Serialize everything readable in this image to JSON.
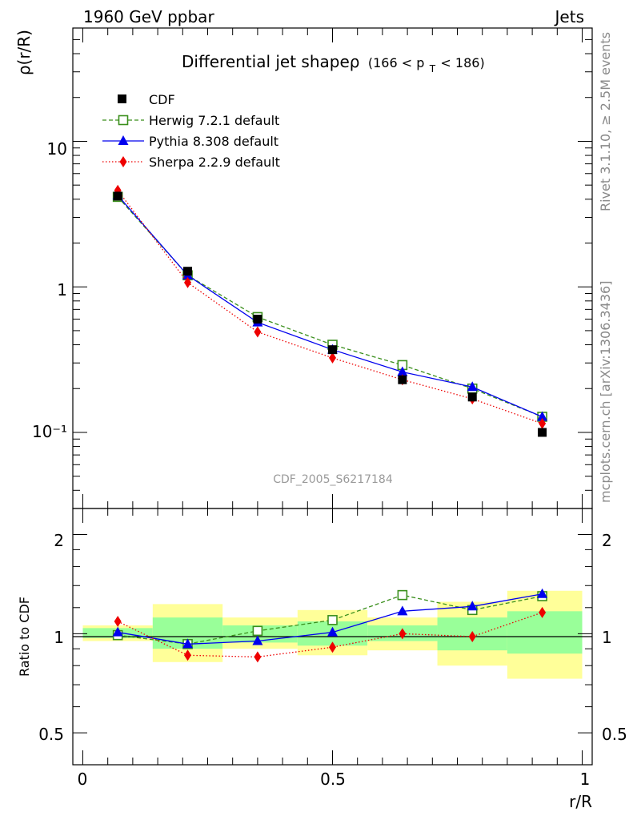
{
  "header": {
    "left": "1960 GeV ppbar",
    "right": "Jets"
  },
  "side_text": {
    "rivet": "Rivet 3.1.10, ≥ 2.5M events",
    "mcplots": "mcplots.cern.ch [arXiv:1306.3436]"
  },
  "watermark": "CDF_2005_S6217184",
  "colors": {
    "cdf": "#000000",
    "herwig": "#3a8f1c",
    "pythia": "#0000ee",
    "sherpa": "#ee0000",
    "band_outer": "#ffff99",
    "band_inner": "#99ff99"
  },
  "chart_data": [
    {
      "type": "line",
      "title_main": "Differential jet shapeρ",
      "title_range_prefix": "(166 < p",
      "title_range_sub": "T",
      "title_range_suffix": " < 186)",
      "ylabel": "ρ(r/R)",
      "yscale": "log",
      "ylim": [
        0.03,
        60
      ],
      "xlim": [
        -0.02,
        1.02
      ],
      "y_tick_labels": [
        "10⁻¹",
        "1",
        "10"
      ],
      "legend_position": "top-left",
      "x": [
        0.07,
        0.21,
        0.35,
        0.5,
        0.64,
        0.78,
        0.92
      ],
      "series": [
        {
          "name": "CDF",
          "marker": "filled-square",
          "values": [
            4.2,
            1.28,
            0.6,
            0.37,
            0.23,
            0.175,
            0.1
          ]
        },
        {
          "name": "Herwig 7.2.1 default",
          "marker": "open-square",
          "dash": "dashed",
          "values": [
            4.15,
            1.2,
            0.62,
            0.4,
            0.29,
            0.2,
            0.128
          ]
        },
        {
          "name": "Pythia 8.308 default",
          "marker": "triangle",
          "dash": "solid",
          "values": [
            4.25,
            1.2,
            0.57,
            0.37,
            0.26,
            0.205,
            0.128
          ]
        },
        {
          "name": "Sherpa 2.2.9 default",
          "marker": "diamond",
          "dash": "dotted",
          "values": [
            4.6,
            1.07,
            0.49,
            0.325,
            0.23,
            0.17,
            0.115
          ]
        }
      ]
    },
    {
      "type": "line",
      "ylabel": "Ratio to CDF",
      "xlabel": "r/R",
      "yscale": "log",
      "ylim": [
        0.4,
        2.4
      ],
      "xlim": [
        -0.02,
        1.02
      ],
      "y_ticks": [
        0.5,
        1,
        2
      ],
      "y_tick_labels": [
        "0.5",
        "1",
        "2"
      ],
      "x_ticks": [
        0,
        0.5,
        1
      ],
      "x_tick_labels": [
        "0",
        "0.5",
        "1"
      ],
      "reference_line": 1,
      "bands": [
        {
          "x0": 0.0,
          "x1": 0.14,
          "outer": [
            0.95,
            1.06
          ],
          "inner": [
            0.97,
            1.04
          ]
        },
        {
          "x0": 0.14,
          "x1": 0.28,
          "outer": [
            0.82,
            1.23
          ],
          "inner": [
            0.9,
            1.12
          ]
        },
        {
          "x0": 0.28,
          "x1": 0.43,
          "outer": [
            0.9,
            1.12
          ],
          "inner": [
            0.94,
            1.06
          ]
        },
        {
          "x0": 0.43,
          "x1": 0.57,
          "outer": [
            0.86,
            1.18
          ],
          "inner": [
            0.92,
            1.09
          ]
        },
        {
          "x0": 0.57,
          "x1": 0.71,
          "outer": [
            0.89,
            1.12
          ],
          "inner": [
            0.95,
            1.06
          ]
        },
        {
          "x0": 0.71,
          "x1": 0.85,
          "outer": [
            0.8,
            1.25
          ],
          "inner": [
            0.89,
            1.12
          ]
        },
        {
          "x0": 0.85,
          "x1": 1.0,
          "outer": [
            0.73,
            1.35
          ],
          "inner": [
            0.87,
            1.17
          ]
        }
      ],
      "x": [
        0.07,
        0.21,
        0.35,
        0.5,
        0.64,
        0.78,
        0.92
      ],
      "series": [
        {
          "name": "Herwig 7.2.1 default",
          "marker": "open-square",
          "dash": "dashed",
          "values": [
            0.99,
            0.93,
            1.02,
            1.1,
            1.31,
            1.18,
            1.3
          ]
        },
        {
          "name": "Pythia 8.308 default",
          "marker": "triangle",
          "dash": "solid",
          "values": [
            1.01,
            0.93,
            0.95,
            1.01,
            1.17,
            1.21,
            1.32
          ]
        },
        {
          "name": "Sherpa 2.2.9 default",
          "marker": "diamond",
          "dash": "dotted",
          "values": [
            1.09,
            0.86,
            0.85,
            0.91,
            1.0,
            0.98,
            1.16
          ]
        }
      ]
    }
  ]
}
